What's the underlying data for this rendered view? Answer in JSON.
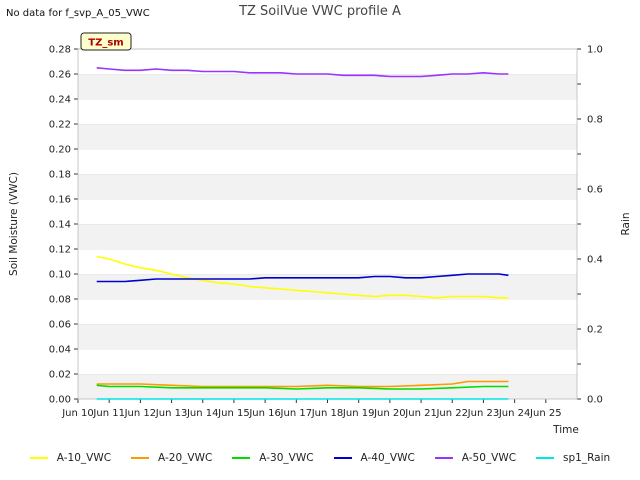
{
  "header": {
    "note": "No data for f_svp_A_05_VWC"
  },
  "chart_data": {
    "type": "line",
    "title": "TZ SoilVue VWC profile A",
    "badge": "TZ_sm",
    "xlabel": "Time",
    "ylabel": "Soil Moisture (VWC)",
    "y2label": "Rain",
    "xlim": [
      0,
      16
    ],
    "ylim": [
      0,
      0.28
    ],
    "y2lim": [
      0,
      1.0
    ],
    "grid": "horizontal bands",
    "legend_position": "bottom",
    "x_ticks": [
      {
        "x": 0,
        "label": "Jun 10"
      },
      {
        "x": 1,
        "label": "Jun 11"
      },
      {
        "x": 2,
        "label": "Jun 12"
      },
      {
        "x": 3,
        "label": "Jun 13"
      },
      {
        "x": 4,
        "label": "Jun 14"
      },
      {
        "x": 5,
        "label": "Jun 15"
      },
      {
        "x": 6,
        "label": "Jun 16"
      },
      {
        "x": 7,
        "label": "Jun 17"
      },
      {
        "x": 8,
        "label": "Jun 18"
      },
      {
        "x": 9,
        "label": "Jun 19"
      },
      {
        "x": 10,
        "label": "Jun 20"
      },
      {
        "x": 11,
        "label": "Jun 21"
      },
      {
        "x": 12,
        "label": "Jun 22"
      },
      {
        "x": 13,
        "label": "Jun 23"
      },
      {
        "x": 14,
        "label": "Jun 24"
      },
      {
        "x": 15,
        "label": "Jun 25"
      }
    ],
    "y_ticks": [
      "0.00",
      "0.02",
      "0.04",
      "0.06",
      "0.08",
      "0.10",
      "0.12",
      "0.14",
      "0.16",
      "0.18",
      "0.20",
      "0.22",
      "0.24",
      "0.26",
      "0.28"
    ],
    "y2_ticks": [
      "0.0",
      "0.2",
      "0.4",
      "0.6",
      "0.8",
      "1.0"
    ],
    "series": [
      {
        "name": "A-10_VWC",
        "color": "#ffff00",
        "axis": "left",
        "x": [
          0.6,
          1,
          1.5,
          2,
          2.5,
          3,
          3.5,
          4,
          4.5,
          5,
          5.5,
          6,
          6.5,
          7,
          7.5,
          8,
          8.5,
          9,
          9.5,
          10,
          10.5,
          11,
          11.5,
          12,
          12.5,
          13,
          13.5,
          13.8
        ],
        "y": [
          0.114,
          0.112,
          0.108,
          0.105,
          0.103,
          0.1,
          0.097,
          0.095,
          0.093,
          0.092,
          0.09,
          0.089,
          0.088,
          0.087,
          0.086,
          0.085,
          0.084,
          0.083,
          0.082,
          0.083,
          0.083,
          0.082,
          0.081,
          0.082,
          0.082,
          0.082,
          0.081,
          0.081
        ]
      },
      {
        "name": "A-20_VWC",
        "color": "#ff9900",
        "axis": "left",
        "x": [
          0.6,
          1,
          2,
          3,
          4,
          5,
          6,
          7,
          8,
          9,
          10,
          11,
          12,
          12.5,
          13,
          13.5,
          13.8
        ],
        "y": [
          0.012,
          0.012,
          0.012,
          0.011,
          0.01,
          0.01,
          0.01,
          0.01,
          0.011,
          0.01,
          0.01,
          0.011,
          0.012,
          0.014,
          0.014,
          0.014,
          0.014
        ]
      },
      {
        "name": "A-30_VWC",
        "color": "#00dd00",
        "axis": "left",
        "x": [
          0.6,
          1,
          2,
          3,
          4,
          5,
          6,
          7,
          8,
          9,
          10,
          11,
          12,
          13,
          13.8
        ],
        "y": [
          0.011,
          0.01,
          0.01,
          0.009,
          0.009,
          0.009,
          0.009,
          0.008,
          0.009,
          0.009,
          0.008,
          0.008,
          0.009,
          0.01,
          0.01
        ]
      },
      {
        "name": "A-40_VWC",
        "color": "#0000cc",
        "axis": "left",
        "x": [
          0.6,
          1,
          1.5,
          2,
          2.5,
          3,
          3.5,
          4,
          4.5,
          5,
          5.5,
          6,
          6.5,
          7,
          7.5,
          8,
          8.5,
          9,
          9.5,
          10,
          10.5,
          11,
          11.5,
          12,
          12.5,
          13,
          13.5,
          13.8
        ],
        "y": [
          0.094,
          0.094,
          0.094,
          0.095,
          0.096,
          0.096,
          0.096,
          0.096,
          0.096,
          0.096,
          0.096,
          0.097,
          0.097,
          0.097,
          0.097,
          0.097,
          0.097,
          0.097,
          0.098,
          0.098,
          0.097,
          0.097,
          0.098,
          0.099,
          0.1,
          0.1,
          0.1,
          0.099
        ]
      },
      {
        "name": "A-50_VWC",
        "color": "#9933ff",
        "axis": "left",
        "x": [
          0.6,
          1,
          1.5,
          2,
          2.5,
          3,
          3.5,
          4,
          4.5,
          5,
          5.5,
          6,
          6.5,
          7,
          7.5,
          8,
          8.5,
          9,
          9.5,
          10,
          10.5,
          11,
          11.5,
          12,
          12.5,
          13,
          13.5,
          13.8
        ],
        "y": [
          0.265,
          0.264,
          0.263,
          0.263,
          0.264,
          0.263,
          0.263,
          0.262,
          0.262,
          0.262,
          0.261,
          0.261,
          0.261,
          0.26,
          0.26,
          0.26,
          0.259,
          0.259,
          0.259,
          0.258,
          0.258,
          0.258,
          0.259,
          0.26,
          0.26,
          0.261,
          0.26,
          0.26
        ]
      },
      {
        "name": "sp1_Rain",
        "color": "#00e5e5",
        "axis": "right",
        "x": [
          0.6,
          13.8
        ],
        "y": [
          0.0,
          0.0
        ]
      }
    ]
  }
}
